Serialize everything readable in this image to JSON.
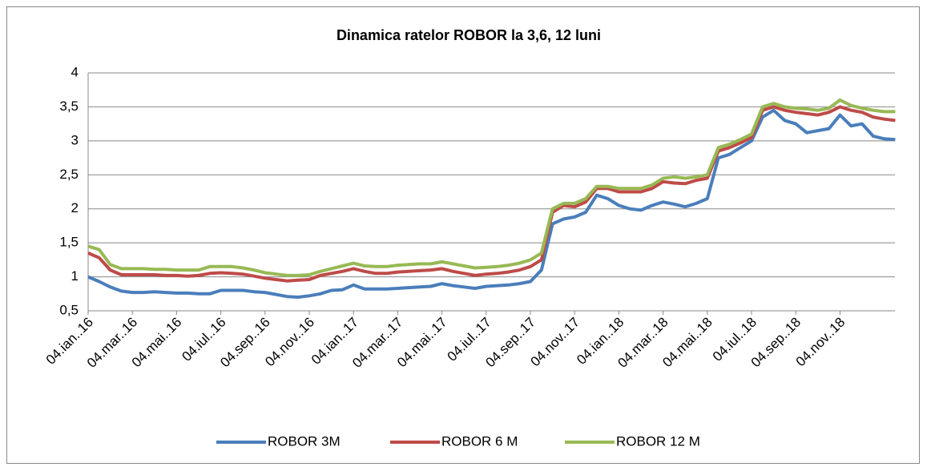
{
  "chart_data": {
    "type": "line",
    "title": "Dinamica ratelor ROBOR la 3,6, 12 luni",
    "categories": [
      "04.ian..16",
      null,
      null,
      null,
      "04.mar..16",
      null,
      null,
      null,
      "04.mai..16",
      null,
      null,
      null,
      "04.iul..16",
      null,
      null,
      null,
      "04.sep..16",
      null,
      null,
      null,
      "04.nov..16",
      null,
      null,
      null,
      "04.ian..17",
      null,
      null,
      null,
      "04.mar..17",
      null,
      null,
      null,
      "04.mai..17",
      null,
      null,
      null,
      "04.iul..17",
      null,
      null,
      null,
      "04.sep..17",
      null,
      null,
      null,
      "04.nov..17",
      null,
      null,
      null,
      "04.ian..18",
      null,
      null,
      null,
      "04.mar..18",
      null,
      null,
      null,
      "04.mai..18",
      null,
      null,
      null,
      "04.iul..18",
      null,
      null,
      null,
      "04.sep..18",
      null,
      null,
      null,
      "04.nov..18",
      null,
      null,
      null,
      null,
      null
    ],
    "series": [
      {
        "name": "ROBOR 3M",
        "color": "#4a7ebb",
        "values": [
          1.0,
          0.93,
          0.85,
          0.79,
          0.77,
          0.77,
          0.78,
          0.77,
          0.76,
          0.76,
          0.75,
          0.75,
          0.8,
          0.8,
          0.8,
          0.78,
          0.77,
          0.74,
          0.71,
          0.7,
          0.72,
          0.75,
          0.8,
          0.81,
          0.88,
          0.82,
          0.82,
          0.82,
          0.83,
          0.84,
          0.85,
          0.86,
          0.9,
          0.87,
          0.85,
          0.83,
          0.86,
          0.87,
          0.88,
          0.9,
          0.93,
          1.1,
          1.78,
          1.85,
          1.88,
          1.95,
          2.2,
          2.15,
          2.05,
          2.0,
          1.98,
          2.05,
          2.1,
          2.07,
          2.03,
          2.08,
          2.15,
          2.75,
          2.8,
          2.9,
          3.0,
          3.35,
          3.45,
          3.3,
          3.25,
          3.12,
          3.15,
          3.18,
          3.38,
          3.22,
          3.25,
          3.07,
          3.03,
          3.02
        ]
      },
      {
        "name": "ROBOR 6 M",
        "color": "#be4b48",
        "values": [
          1.35,
          1.28,
          1.1,
          1.03,
          1.03,
          1.03,
          1.03,
          1.02,
          1.02,
          1.01,
          1.02,
          1.05,
          1.06,
          1.05,
          1.04,
          1.01,
          0.98,
          0.96,
          0.94,
          0.95,
          0.96,
          1.02,
          1.05,
          1.08,
          1.12,
          1.08,
          1.05,
          1.05,
          1.07,
          1.08,
          1.09,
          1.1,
          1.12,
          1.08,
          1.05,
          1.02,
          1.04,
          1.05,
          1.07,
          1.1,
          1.15,
          1.25,
          1.95,
          2.05,
          2.03,
          2.1,
          2.3,
          2.3,
          2.25,
          2.25,
          2.25,
          2.3,
          2.4,
          2.38,
          2.37,
          2.42,
          2.45,
          2.85,
          2.9,
          2.97,
          3.05,
          3.45,
          3.5,
          3.45,
          3.42,
          3.4,
          3.38,
          3.42,
          3.5,
          3.45,
          3.42,
          3.35,
          3.32,
          3.3
        ]
      },
      {
        "name": "ROBOR 12 M",
        "color": "#98b954",
        "values": [
          1.45,
          1.4,
          1.18,
          1.12,
          1.12,
          1.12,
          1.11,
          1.11,
          1.1,
          1.1,
          1.1,
          1.15,
          1.15,
          1.15,
          1.13,
          1.1,
          1.06,
          1.04,
          1.02,
          1.02,
          1.03,
          1.08,
          1.12,
          1.16,
          1.2,
          1.16,
          1.15,
          1.15,
          1.17,
          1.18,
          1.19,
          1.19,
          1.22,
          1.19,
          1.16,
          1.13,
          1.14,
          1.15,
          1.17,
          1.2,
          1.25,
          1.35,
          2.0,
          2.08,
          2.08,
          2.15,
          2.33,
          2.33,
          2.3,
          2.3,
          2.3,
          2.35,
          2.45,
          2.47,
          2.45,
          2.47,
          2.5,
          2.9,
          2.95,
          3.02,
          3.1,
          3.5,
          3.55,
          3.5,
          3.48,
          3.47,
          3.45,
          3.48,
          3.6,
          3.52,
          3.48,
          3.45,
          3.43,
          3.43
        ]
      }
    ],
    "ylim": [
      0.5,
      4
    ],
    "yticks": [
      {
        "value": 0.5,
        "label": "0,5"
      },
      1,
      {
        "value": 1.5,
        "label": "1,5"
      },
      2,
      {
        "value": 2.5,
        "label": "2,5"
      },
      3,
      {
        "value": 3.5,
        "label": "3,5"
      },
      4
    ],
    "grid": true,
    "legend": "bottom"
  }
}
